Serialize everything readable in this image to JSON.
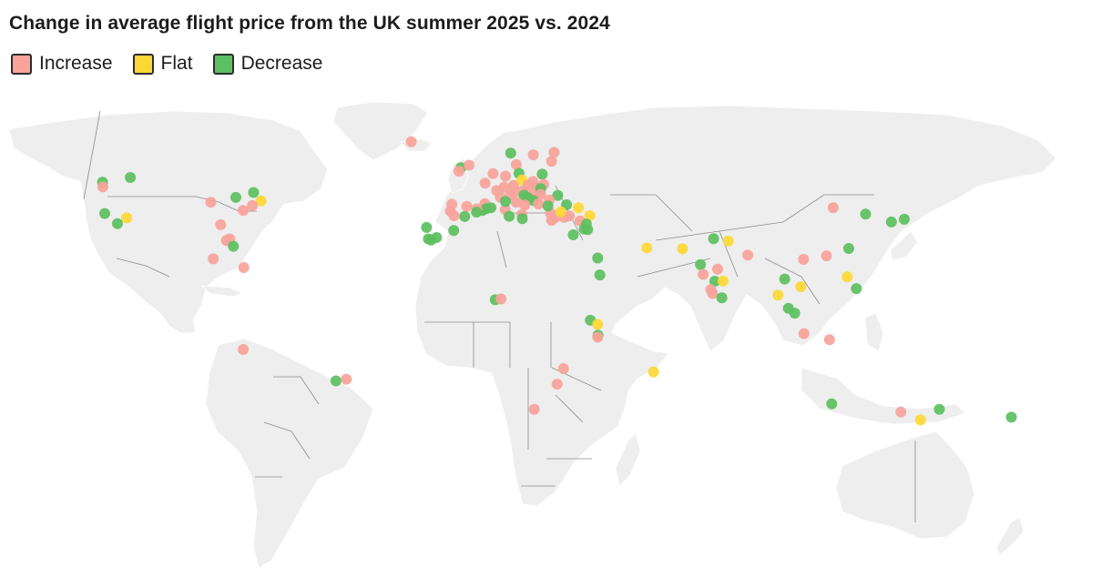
{
  "title": "Change in average flight price from the UK summer 2025 vs. 2024",
  "legend": [
    {
      "key": "inc",
      "label": "Increase",
      "color": "#f7a39a"
    },
    {
      "key": "flat",
      "label": "Flat",
      "color": "#fdd835"
    },
    {
      "key": "dec",
      "label": "Decrease",
      "color": "#5cbf60"
    }
  ],
  "colors": {
    "land": "#eeeeee",
    "border": "#8c8c8c"
  },
  "destinations": [
    {
      "lon": -123.1,
      "lat": 49.3,
      "c": "dec"
    },
    {
      "lon": -123.0,
      "lat": 47.6,
      "c": "inc"
    },
    {
      "lon": -114.0,
      "lat": 51.0,
      "c": "dec"
    },
    {
      "lon": -122.4,
      "lat": 37.8,
      "c": "dec"
    },
    {
      "lon": -118.2,
      "lat": 34.1,
      "c": "dec"
    },
    {
      "lon": -115.2,
      "lat": 36.2,
      "c": "flat"
    },
    {
      "lon": -87.6,
      "lat": 41.9,
      "c": "inc"
    },
    {
      "lon": -79.4,
      "lat": 43.7,
      "c": "dec"
    },
    {
      "lon": -73.6,
      "lat": 45.5,
      "c": "dec"
    },
    {
      "lon": -71.1,
      "lat": 42.4,
      "c": "flat"
    },
    {
      "lon": -74.0,
      "lat": 40.7,
      "c": "inc"
    },
    {
      "lon": -77.0,
      "lat": 38.9,
      "c": "inc"
    },
    {
      "lon": -84.4,
      "lat": 33.7,
      "c": "inc"
    },
    {
      "lon": -82.5,
      "lat": 27.9,
      "c": "inc"
    },
    {
      "lon": -81.4,
      "lat": 28.5,
      "c": "inc"
    },
    {
      "lon": -80.2,
      "lat": 25.8,
      "c": "dec"
    },
    {
      "lon": -86.8,
      "lat": 21.2,
      "c": "inc"
    },
    {
      "lon": -76.8,
      "lat": 18.0,
      "c": "inc"
    },
    {
      "lon": -21.9,
      "lat": 64.1,
      "c": "inc"
    },
    {
      "lon": -77.0,
      "lat": -12.0,
      "c": "inc"
    },
    {
      "lon": -43.2,
      "lat": -22.9,
      "c": "inc"
    },
    {
      "lon": -46.6,
      "lat": -23.5,
      "c": "dec"
    },
    {
      "lon": -5.6,
      "lat": 54.6,
      "c": "dec"
    },
    {
      "lon": -6.3,
      "lat": 53.3,
      "c": "inc"
    },
    {
      "lon": -3.0,
      "lat": 55.5,
      "c": "inc"
    },
    {
      "lon": 4.9,
      "lat": 52.4,
      "c": "inc"
    },
    {
      "lon": 2.3,
      "lat": 48.9,
      "c": "inc"
    },
    {
      "lon": 9.0,
      "lat": 51.5,
      "c": "inc"
    },
    {
      "lon": 12.5,
      "lat": 55.7,
      "c": "inc"
    },
    {
      "lon": 10.7,
      "lat": 59.9,
      "c": "dec"
    },
    {
      "lon": 18.1,
      "lat": 59.3,
      "c": "inc"
    },
    {
      "lon": 24.9,
      "lat": 60.2,
      "c": "inc"
    },
    {
      "lon": 24.1,
      "lat": 56.9,
      "c": "inc"
    },
    {
      "lon": 13.4,
      "lat": 52.5,
      "c": "dec"
    },
    {
      "lon": 21.0,
      "lat": 52.2,
      "c": "dec"
    },
    {
      "lon": 11.6,
      "lat": 48.1,
      "c": "inc"
    },
    {
      "lon": 14.4,
      "lat": 50.1,
      "c": "flat"
    },
    {
      "lon": 16.4,
      "lat": 48.2,
      "c": "inc"
    },
    {
      "lon": 19.0,
      "lat": 47.5,
      "c": "inc"
    },
    {
      "lon": 18.0,
      "lat": 49.5,
      "c": "inc"
    },
    {
      "lon": 21.5,
      "lat": 48.5,
      "c": "inc"
    },
    {
      "lon": 20.5,
      "lat": 46.9,
      "c": "dec"
    },
    {
      "lon": 6.1,
      "lat": 46.2,
      "c": "inc"
    },
    {
      "lon": 8.5,
      "lat": 47.4,
      "c": "inc"
    },
    {
      "lon": 12.0,
      "lat": 45.7,
      "c": "inc"
    },
    {
      "lon": 10.6,
      "lat": 44.6,
      "c": "inc"
    },
    {
      "lon": 14.5,
      "lat": 46.0,
      "c": "inc"
    },
    {
      "lon": 16.0,
      "lat": 45.8,
      "c": "inc"
    },
    {
      "lon": 26.1,
      "lat": 44.4,
      "c": "dec"
    },
    {
      "lon": 23.3,
      "lat": 42.7,
      "c": "inc"
    },
    {
      "lon": 20.5,
      "lat": 44.8,
      "c": "inc"
    },
    {
      "lon": 18.4,
      "lat": 43.9,
      "c": "inc"
    },
    {
      "lon": 15.0,
      "lat": 44.5,
      "c": "dec"
    },
    {
      "lon": 16.4,
      "lat": 43.5,
      "c": "dec"
    },
    {
      "lon": 18.1,
      "lat": 42.6,
      "c": "dec"
    },
    {
      "lon": 19.8,
      "lat": 41.3,
      "c": "inc"
    },
    {
      "lon": 12.5,
      "lat": 41.9,
      "c": "inc"
    },
    {
      "lon": 15.3,
      "lat": 40.9,
      "c": "inc"
    },
    {
      "lon": 8.9,
      "lat": 39.2,
      "c": "inc"
    },
    {
      "lon": 14.4,
      "lat": 37.5,
      "c": "inc"
    },
    {
      "lon": 14.5,
      "lat": 35.9,
      "c": "dec"
    },
    {
      "lon": 7.3,
      "lat": 43.7,
      "c": "inc"
    },
    {
      "lon": 9.0,
      "lat": 42.2,
      "c": "dec"
    },
    {
      "lon": 2.2,
      "lat": 41.4,
      "c": "inc"
    },
    {
      "lon": 2.7,
      "lat": 39.6,
      "c": "dec"
    },
    {
      "lon": 4.2,
      "lat": 39.9,
      "c": "dec"
    },
    {
      "lon": 1.4,
      "lat": 38.9,
      "c": "dec"
    },
    {
      "lon": -3.7,
      "lat": 40.4,
      "c": "inc"
    },
    {
      "lon": -0.4,
      "lat": 39.5,
      "c": "inc"
    },
    {
      "lon": -0.5,
      "lat": 38.3,
      "c": "dec"
    },
    {
      "lon": -4.4,
      "lat": 36.7,
      "c": "dec"
    },
    {
      "lon": -8.6,
      "lat": 41.2,
      "c": "inc"
    },
    {
      "lon": -9.1,
      "lat": 38.7,
      "c": "inc"
    },
    {
      "lon": -7.9,
      "lat": 37.0,
      "c": "inc"
    },
    {
      "lon": -16.9,
      "lat": 32.7,
      "c": "dec"
    },
    {
      "lon": -15.4,
      "lat": 28.1,
      "c": "dec"
    },
    {
      "lon": -16.3,
      "lat": 28.5,
      "c": "dec"
    },
    {
      "lon": -13.6,
      "lat": 29.0,
      "c": "dec"
    },
    {
      "lon": -8.0,
      "lat": 31.6,
      "c": "dec"
    },
    {
      "lon": 10.2,
      "lat": 36.8,
      "c": "dec"
    },
    {
      "lon": 28.2,
      "lat": 36.4,
      "c": "inc"
    },
    {
      "lon": 25.4,
      "lat": 36.4,
      "c": "inc"
    },
    {
      "lon": 23.7,
      "lat": 38.0,
      "c": "inc"
    },
    {
      "lon": 24.1,
      "lat": 35.3,
      "c": "inc"
    },
    {
      "lon": 22.9,
      "lat": 40.6,
      "c": "dec"
    },
    {
      "lon": 29.0,
      "lat": 41.0,
      "c": "dec"
    },
    {
      "lon": 32.9,
      "lat": 39.9,
      "c": "flat"
    },
    {
      "lon": 29.9,
      "lat": 36.9,
      "c": "inc"
    },
    {
      "lon": 27.1,
      "lat": 38.4,
      "c": "flat"
    },
    {
      "lon": 33.4,
      "lat": 35.1,
      "c": "inc"
    },
    {
      "lon": 36.6,
      "lat": 37.0,
      "c": "flat"
    },
    {
      "lon": 35.5,
      "lat": 33.9,
      "c": "dec"
    },
    {
      "lon": 35.9,
      "lat": 31.9,
      "c": "dec"
    },
    {
      "lon": 34.8,
      "lat": 32.1,
      "c": "dec"
    },
    {
      "lon": 31.2,
      "lat": 30.0,
      "c": "dec"
    },
    {
      "lon": 39.2,
      "lat": 21.5,
      "c": "dec"
    },
    {
      "lon": 39.9,
      "lat": 15.3,
      "c": "dec"
    },
    {
      "lon": 55.3,
      "lat": 25.2,
      "c": "flat"
    },
    {
      "lon": 67.0,
      "lat": 24.9,
      "c": "flat"
    },
    {
      "lon": 72.9,
      "lat": 19.1,
      "c": "dec"
    },
    {
      "lon": 73.8,
      "lat": 15.5,
      "c": "inc"
    },
    {
      "lon": 77.2,
      "lat": 28.6,
      "c": "dec"
    },
    {
      "lon": 82.0,
      "lat": 27.7,
      "c": "flat"
    },
    {
      "lon": 88.4,
      "lat": 22.6,
      "c": "inc"
    },
    {
      "lon": 78.5,
      "lat": 17.4,
      "c": "inc"
    },
    {
      "lon": 77.6,
      "lat": 13.0,
      "c": "dec"
    },
    {
      "lon": 80.3,
      "lat": 13.1,
      "c": "flat"
    },
    {
      "lon": 76.3,
      "lat": 9.9,
      "c": "inc"
    },
    {
      "lon": 76.9,
      "lat": 8.5,
      "c": "inc"
    },
    {
      "lon": 79.9,
      "lat": 6.9,
      "c": "dec"
    },
    {
      "lon": 100.5,
      "lat": 13.8,
      "c": "dec"
    },
    {
      "lon": 98.3,
      "lat": 7.9,
      "c": "flat"
    },
    {
      "lon": 105.8,
      "lat": 11.0,
      "c": "flat"
    },
    {
      "lon": 101.7,
      "lat": 3.1,
      "c": "dec"
    },
    {
      "lon": 103.8,
      "lat": 1.3,
      "c": "dec"
    },
    {
      "lon": 106.8,
      "lat": -6.2,
      "c": "inc"
    },
    {
      "lon": 115.2,
      "lat": -8.4,
      "c": "inc"
    },
    {
      "lon": 106.7,
      "lat": 21.0,
      "c": "inc"
    },
    {
      "lon": 114.2,
      "lat": 22.3,
      "c": "inc"
    },
    {
      "lon": 121.5,
      "lat": 25.0,
      "c": "dec"
    },
    {
      "lon": 116.4,
      "lat": 39.9,
      "c": "inc"
    },
    {
      "lon": 127.0,
      "lat": 37.6,
      "c": "dec"
    },
    {
      "lon": 135.5,
      "lat": 34.7,
      "c": "dec"
    },
    {
      "lon": 139.7,
      "lat": 35.7,
      "c": "dec"
    },
    {
      "lon": 121.0,
      "lat": 14.6,
      "c": "flat"
    },
    {
      "lon": 124.0,
      "lat": 10.3,
      "c": "dec"
    },
    {
      "lon": 5.6,
      "lat": 6.2,
      "c": "dec"
    },
    {
      "lon": 7.5,
      "lat": 6.5,
      "c": "inc"
    },
    {
      "lon": 36.8,
      "lat": -1.3,
      "c": "dec"
    },
    {
      "lon": 39.2,
      "lat": -2.8,
      "c": "flat"
    },
    {
      "lon": 39.3,
      "lat": -6.8,
      "c": "dec"
    },
    {
      "lon": 39.2,
      "lat": -7.5,
      "c": "inc"
    },
    {
      "lon": 28.0,
      "lat": -19.0,
      "c": "inc"
    },
    {
      "lon": 25.9,
      "lat": -24.7,
      "c": "inc"
    },
    {
      "lon": 18.4,
      "lat": -33.9,
      "c": "inc"
    },
    {
      "lon": 57.5,
      "lat": -20.2,
      "c": "flat"
    },
    {
      "lon": 115.9,
      "lat": -31.9,
      "c": "dec"
    },
    {
      "lon": 138.6,
      "lat": -34.9,
      "c": "inc"
    },
    {
      "lon": 145.0,
      "lat": -37.8,
      "c": "flat"
    },
    {
      "lon": 151.2,
      "lat": -33.9,
      "c": "dec"
    },
    {
      "lon": 174.8,
      "lat": -36.8,
      "c": "dec"
    }
  ]
}
